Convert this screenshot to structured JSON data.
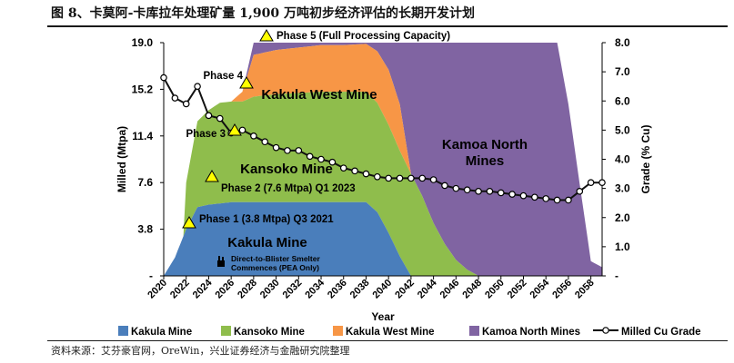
{
  "title": "图 8、卡莫阿-卡库拉年处理矿量 1,900 万吨初步经济评估的长期开发计划",
  "source": "资料来源：艾芬豪官网，OreWin，兴业证券经济与金融研究院整理",
  "chart_data": {
    "type": "area",
    "xlabel": "Year",
    "ylabel_left": "Milled (Mtpa)",
    "ylabel_right": "Grade (% Cu)",
    "xlim": [
      2020,
      2059
    ],
    "ylim_left": [
      0,
      19.0
    ],
    "ylim_right": [
      0,
      8.0
    ],
    "y_ticks_left": [
      "-",
      "3.8",
      "7.6",
      "11.4",
      "15.2",
      "19.0"
    ],
    "y_ticks_right": [
      "-",
      "1.0",
      "2.0",
      "3.0",
      "4.0",
      "5.0",
      "6.0",
      "7.0",
      "8.0"
    ],
    "x_ticks": [
      "2020",
      "2022",
      "2024",
      "2026",
      "2028",
      "2030",
      "2032",
      "2034",
      "2036",
      "2038",
      "2040",
      "2042",
      "2044",
      "2046",
      "2048",
      "2050",
      "2052",
      "2054",
      "2056",
      "2058"
    ],
    "colors": {
      "kakula": "#4a7ebb",
      "kansoko": "#8fbd4c",
      "kakula_west": "#f79646",
      "kamoa_north": "#8064a2",
      "grade": "#111111"
    },
    "series": [
      {
        "name": "Kakula Mine",
        "x": [
          2020,
          2021,
          2022,
          2023,
          2024,
          2025,
          2026,
          2027,
          2028,
          2030,
          2032,
          2034,
          2036,
          2038,
          2039,
          2040,
          2041,
          2042
        ],
        "values": [
          0,
          1.5,
          3.8,
          5.6,
          5.8,
          5.9,
          6.0,
          6.0,
          6.0,
          6.0,
          6.0,
          6.0,
          6.0,
          6.0,
          5.2,
          3.5,
          1.6,
          0
        ]
      },
      {
        "name": "Kansoko Mine",
        "x": [
          2022,
          2023,
          2024,
          2025,
          2026,
          2027,
          2028,
          2030,
          2032,
          2034,
          2036,
          2038,
          2040,
          2041,
          2042,
          2043,
          2044,
          2045,
          2046,
          2047,
          2048
        ],
        "values": [
          3.8,
          7.0,
          7.7,
          8.2,
          8.2,
          8.2,
          8.6,
          8.8,
          8.9,
          9.0,
          9.0,
          9.0,
          8.8,
          8.6,
          8.3,
          6.5,
          4.3,
          2.6,
          1.3,
          0.5,
          0
        ]
      },
      {
        "name": "Kakula West Mine",
        "x": [
          2026,
          2027,
          2028,
          2030,
          2032,
          2034,
          2036,
          2038,
          2040,
          2041,
          2042
        ],
        "values": [
          0,
          0.8,
          3.4,
          3.6,
          3.7,
          3.8,
          3.8,
          3.9,
          4.5,
          3.8,
          0
        ]
      },
      {
        "name": "Kamoa North Mines",
        "x": [
          2027,
          2028,
          2030,
          2032,
          2034,
          2036,
          2038,
          2039,
          2040,
          2041,
          2042,
          2044,
          2046,
          2048,
          2050,
          2052,
          2054,
          2055,
          2056,
          2057,
          2058,
          2059
        ],
        "values": [
          0,
          1.0,
          0.6,
          0.4,
          0.3,
          0.3,
          0.6,
          3.0,
          5.5,
          9.0,
          19.0,
          19.0,
          19.0,
          19.0,
          19.0,
          19.0,
          19.0,
          19.0,
          14.0,
          7.5,
          1.2,
          0.7
        ]
      },
      {
        "name": "Milled Cu Grade",
        "x": [
          2020,
          2021,
          2022,
          2023,
          2024,
          2025,
          2026,
          2027,
          2028,
          2029,
          2030,
          2031,
          2032,
          2033,
          2034,
          2035,
          2036,
          2037,
          2038,
          2039,
          2040,
          2041,
          2042,
          2043,
          2044,
          2045,
          2046,
          2047,
          2048,
          2049,
          2050,
          2051,
          2052,
          2053,
          2054,
          2055,
          2056,
          2057,
          2058,
          2059
        ],
        "values": [
          6.8,
          6.1,
          5.9,
          6.5,
          5.5,
          5.4,
          4.9,
          5.0,
          4.8,
          4.6,
          4.4,
          4.3,
          4.3,
          4.1,
          4.0,
          3.9,
          3.7,
          3.6,
          3.5,
          3.4,
          3.35,
          3.35,
          3.35,
          3.35,
          3.3,
          3.1,
          3.0,
          2.95,
          2.9,
          2.9,
          2.85,
          2.8,
          2.75,
          2.7,
          2.65,
          2.6,
          2.6,
          2.9,
          3.2,
          3.2
        ]
      }
    ],
    "annotations": [
      {
        "label": "Phase 1 (3.8 Mtpa) Q3 2021",
        "x": 2021.7,
        "y": 4.2
      },
      {
        "label": "Phase 2 (7.6 Mtpa) Q1 2023",
        "x": 2023.5,
        "y": 8.0
      },
      {
        "label": "Phase 3",
        "x": 2025.8,
        "y": 11.7
      },
      {
        "label": "Phase 4",
        "x": 2026.8,
        "y": 15.6
      },
      {
        "label": "Phase 5 (Full Processing Capacity)",
        "x": 2028.8,
        "y": 19.2
      }
    ],
    "area_labels": [
      "Kakula Mine",
      "Kansoko Mine",
      "Kakula West Mine",
      "Kamoa North",
      "Mines"
    ],
    "smelter_note": [
      "Direct-to-Blister Smelter",
      "Commences (PEA Only)"
    ],
    "legend": {
      "placement": "bottom",
      "entries": [
        "Kakula Mine",
        "Kansoko Mine",
        "Kakula West Mine",
        "Kamoa North Mines",
        "Milled Cu Grade"
      ]
    }
  }
}
